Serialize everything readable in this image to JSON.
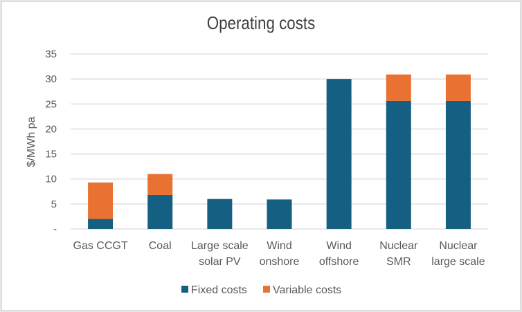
{
  "chart_data": {
    "type": "bar",
    "stacked": true,
    "title": "Operating costs",
    "xlabel": "",
    "ylabel": "$/MWh pa",
    "ylim": [
      0,
      35
    ],
    "yticks": [
      0,
      5,
      10,
      15,
      20,
      25,
      30,
      35
    ],
    "ytick_labels": [
      "-",
      "5",
      "10",
      "15",
      "20",
      "25",
      "30",
      "35"
    ],
    "grid": true,
    "legend_position": "bottom",
    "categories": [
      [
        "Gas CCGT"
      ],
      [
        "Coal"
      ],
      [
        "Large scale",
        "solar PV"
      ],
      [
        "Wind",
        "onshore"
      ],
      [
        "Wind",
        "offshore"
      ],
      [
        "Nuclear",
        "SMR"
      ],
      [
        "Nuclear",
        "large scale"
      ]
    ],
    "series": [
      {
        "name": "Fixed costs",
        "color": "#155f82",
        "values": [
          2.0,
          6.8,
          6.0,
          5.9,
          30.0,
          25.6,
          25.6
        ]
      },
      {
        "name": "Variable costs",
        "color": "#e97132",
        "values": [
          7.3,
          4.2,
          0,
          0,
          0,
          5.3,
          5.3
        ]
      }
    ]
  }
}
